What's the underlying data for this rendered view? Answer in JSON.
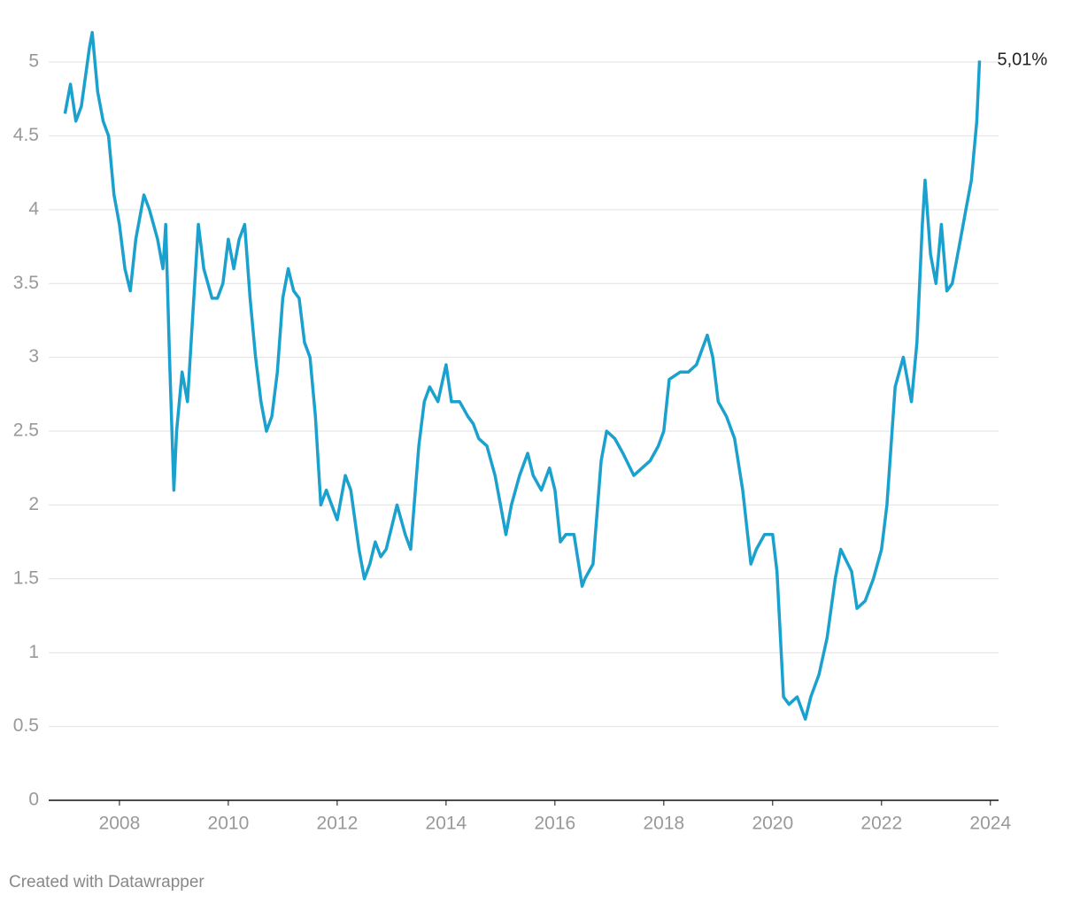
{
  "chart_data": {
    "type": "line",
    "x": [
      2007.0,
      2007.1,
      2007.2,
      2007.3,
      2007.45,
      2007.5,
      2007.6,
      2007.7,
      2007.8,
      2007.9,
      2008.0,
      2008.1,
      2008.2,
      2008.3,
      2008.45,
      2008.55,
      2008.7,
      2008.8,
      2008.85,
      2008.92,
      2009.0,
      2009.05,
      2009.15,
      2009.25,
      2009.35,
      2009.45,
      2009.55,
      2009.7,
      2009.8,
      2009.9,
      2010.0,
      2010.1,
      2010.2,
      2010.3,
      2010.4,
      2010.5,
      2010.6,
      2010.7,
      2010.8,
      2010.9,
      2011.0,
      2011.1,
      2011.2,
      2011.3,
      2011.4,
      2011.5,
      2011.6,
      2011.7,
      2011.8,
      2011.9,
      2012.0,
      2012.15,
      2012.25,
      2012.4,
      2012.5,
      2012.6,
      2012.7,
      2012.8,
      2012.9,
      2013.0,
      2013.1,
      2013.25,
      2013.35,
      2013.5,
      2013.6,
      2013.7,
      2013.85,
      2014.0,
      2014.1,
      2014.25,
      2014.4,
      2014.5,
      2014.6,
      2014.75,
      2014.9,
      2015.0,
      2015.1,
      2015.2,
      2015.35,
      2015.5,
      2015.6,
      2015.75,
      2015.9,
      2016.0,
      2016.1,
      2016.2,
      2016.35,
      2016.5,
      2016.55,
      2016.7,
      2016.85,
      2016.95,
      2017.1,
      2017.25,
      2017.45,
      2017.6,
      2017.75,
      2017.9,
      2018.0,
      2018.1,
      2018.3,
      2018.45,
      2018.6,
      2018.8,
      2018.9,
      2019.0,
      2019.15,
      2019.3,
      2019.45,
      2019.6,
      2019.7,
      2019.85,
      2020.0,
      2020.08,
      2020.2,
      2020.3,
      2020.45,
      2020.6,
      2020.7,
      2020.85,
      2021.0,
      2021.15,
      2021.25,
      2021.45,
      2021.55,
      2021.7,
      2021.85,
      2022.0,
      2022.1,
      2022.25,
      2022.4,
      2022.45,
      2022.55,
      2022.65,
      2022.75,
      2022.8,
      2022.9,
      2023.0,
      2023.1,
      2023.2,
      2023.3,
      2023.45,
      2023.55,
      2023.65,
      2023.75,
      2023.8
    ],
    "series": [
      {
        "color": "#1ba1cd",
        "values": [
          4.65,
          4.85,
          4.6,
          4.7,
          5.1,
          5.2,
          4.8,
          4.6,
          4.5,
          4.1,
          3.9,
          3.6,
          3.45,
          3.8,
          4.1,
          4.0,
          3.8,
          3.6,
          3.9,
          3.0,
          2.1,
          2.5,
          2.9,
          2.7,
          3.3,
          3.9,
          3.6,
          3.4,
          3.4,
          3.5,
          3.8,
          3.6,
          3.8,
          3.9,
          3.4,
          3.0,
          2.7,
          2.5,
          2.6,
          2.9,
          3.4,
          3.6,
          3.45,
          3.4,
          3.1,
          3.0,
          2.6,
          2.0,
          2.1,
          2.0,
          1.9,
          2.2,
          2.1,
          1.7,
          1.5,
          1.6,
          1.75,
          1.65,
          1.7,
          1.85,
          2.0,
          1.8,
          1.7,
          2.4,
          2.7,
          2.8,
          2.7,
          2.95,
          2.7,
          2.7,
          2.6,
          2.55,
          2.45,
          2.4,
          2.2,
          2.0,
          1.8,
          2.0,
          2.2,
          2.35,
          2.2,
          2.1,
          2.25,
          2.1,
          1.75,
          1.8,
          1.8,
          1.45,
          1.5,
          1.6,
          2.3,
          2.5,
          2.45,
          2.35,
          2.2,
          2.25,
          2.3,
          2.4,
          2.5,
          2.85,
          2.9,
          2.9,
          2.95,
          3.15,
          3.0,
          2.7,
          2.6,
          2.45,
          2.1,
          1.6,
          1.7,
          1.8,
          1.8,
          1.55,
          0.7,
          0.65,
          0.7,
          0.55,
          0.7,
          0.85,
          1.1,
          1.5,
          1.7,
          1.55,
          1.3,
          1.35,
          1.5,
          1.7,
          2.0,
          2.8,
          3.0,
          2.9,
          2.7,
          3.1,
          3.9,
          4.2,
          3.7,
          3.5,
          3.9,
          3.45,
          3.5,
          3.8,
          4.0,
          4.2,
          4.6,
          5.01
        ]
      }
    ],
    "annotations": [
      {
        "text": "5,01%",
        "x": 2023.8,
        "y": 5.01
      }
    ],
    "xlim": [
      2006.7,
      2024.15
    ],
    "xticks": [
      2008,
      2010,
      2012,
      2014,
      2016,
      2018,
      2020,
      2022,
      2024
    ],
    "ylim": [
      0,
      5.3
    ],
    "yticks": [
      0,
      0.5,
      1,
      1.5,
      2,
      2.5,
      3,
      3.5,
      4,
      4.5,
      5
    ],
    "grid": true,
    "credit": "Created with Datawrapper"
  }
}
